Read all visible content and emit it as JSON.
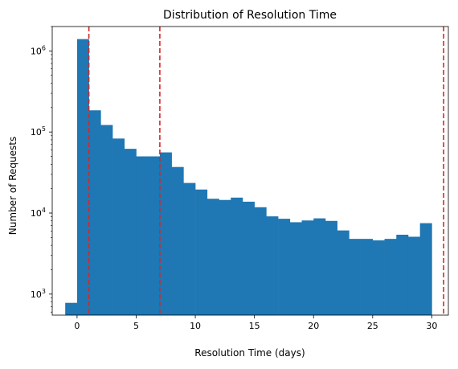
{
  "chart_data": {
    "type": "bar",
    "title": "Distribution of Resolution Time",
    "xlabel": "Resolution Time (days)",
    "ylabel": "Number of Requests",
    "yscale": "log",
    "xlim": [
      -2.1,
      31.4
    ],
    "ylim": [
      550,
      2000000
    ],
    "grid": false,
    "bar_color": "#1f77b4",
    "x_ticks": [
      0,
      5,
      10,
      15,
      20,
      25,
      30
    ],
    "y_ticks": [
      {
        "value": 1000,
        "base": "10",
        "exp": "3"
      },
      {
        "value": 10000,
        "base": "10",
        "exp": "4"
      },
      {
        "value": 100000,
        "base": "10",
        "exp": "5"
      },
      {
        "value": 1000000,
        "base": "10",
        "exp": "6"
      }
    ],
    "bins": [
      {
        "x0": -1.0,
        "x1": 0.0,
        "count": 780
      },
      {
        "x0": 0.0,
        "x1": 1.0,
        "count": 1400000
      },
      {
        "x0": 1.0,
        "x1": 2.0,
        "count": 185000
      },
      {
        "x0": 2.0,
        "x1": 3.0,
        "count": 122000
      },
      {
        "x0": 3.0,
        "x1": 4.0,
        "count": 83000
      },
      {
        "x0": 4.0,
        "x1": 5.0,
        "count": 62000
      },
      {
        "x0": 5.0,
        "x1": 6.0,
        "count": 50000
      },
      {
        "x0": 6.0,
        "x1": 7.0,
        "count": 50000
      },
      {
        "x0": 7.0,
        "x1": 8.0,
        "count": 56000
      },
      {
        "x0": 8.0,
        "x1": 9.0,
        "count": 37000
      },
      {
        "x0": 9.0,
        "x1": 10.0,
        "count": 23500
      },
      {
        "x0": 10.0,
        "x1": 11.0,
        "count": 19500
      },
      {
        "x0": 11.0,
        "x1": 12.0,
        "count": 15000
      },
      {
        "x0": 12.0,
        "x1": 13.0,
        "count": 14500
      },
      {
        "x0": 13.0,
        "x1": 14.0,
        "count": 15500
      },
      {
        "x0": 14.0,
        "x1": 15.0,
        "count": 13800
      },
      {
        "x0": 15.0,
        "x1": 16.0,
        "count": 11800
      },
      {
        "x0": 16.0,
        "x1": 17.0,
        "count": 9100
      },
      {
        "x0": 17.0,
        "x1": 18.0,
        "count": 8500
      },
      {
        "x0": 18.0,
        "x1": 19.0,
        "count": 7700
      },
      {
        "x0": 19.0,
        "x1": 20.0,
        "count": 8100
      },
      {
        "x0": 20.0,
        "x1": 21.0,
        "count": 8600
      },
      {
        "x0": 21.0,
        "x1": 22.0,
        "count": 8000
      },
      {
        "x0": 22.0,
        "x1": 23.0,
        "count": 6100
      },
      {
        "x0": 23.0,
        "x1": 24.0,
        "count": 4800
      },
      {
        "x0": 24.0,
        "x1": 25.0,
        "count": 4800
      },
      {
        "x0": 25.0,
        "x1": 26.0,
        "count": 4600
      },
      {
        "x0": 26.0,
        "x1": 27.0,
        "count": 4800
      },
      {
        "x0": 27.0,
        "x1": 28.0,
        "count": 5400
      },
      {
        "x0": 28.0,
        "x1": 29.0,
        "count": 5100
      },
      {
        "x0": 29.0,
        "x1": 30.0,
        "count": 7500
      }
    ],
    "reference_lines": {
      "color": "#d62728",
      "style": "dashed",
      "x": [
        1,
        7,
        31
      ]
    }
  }
}
